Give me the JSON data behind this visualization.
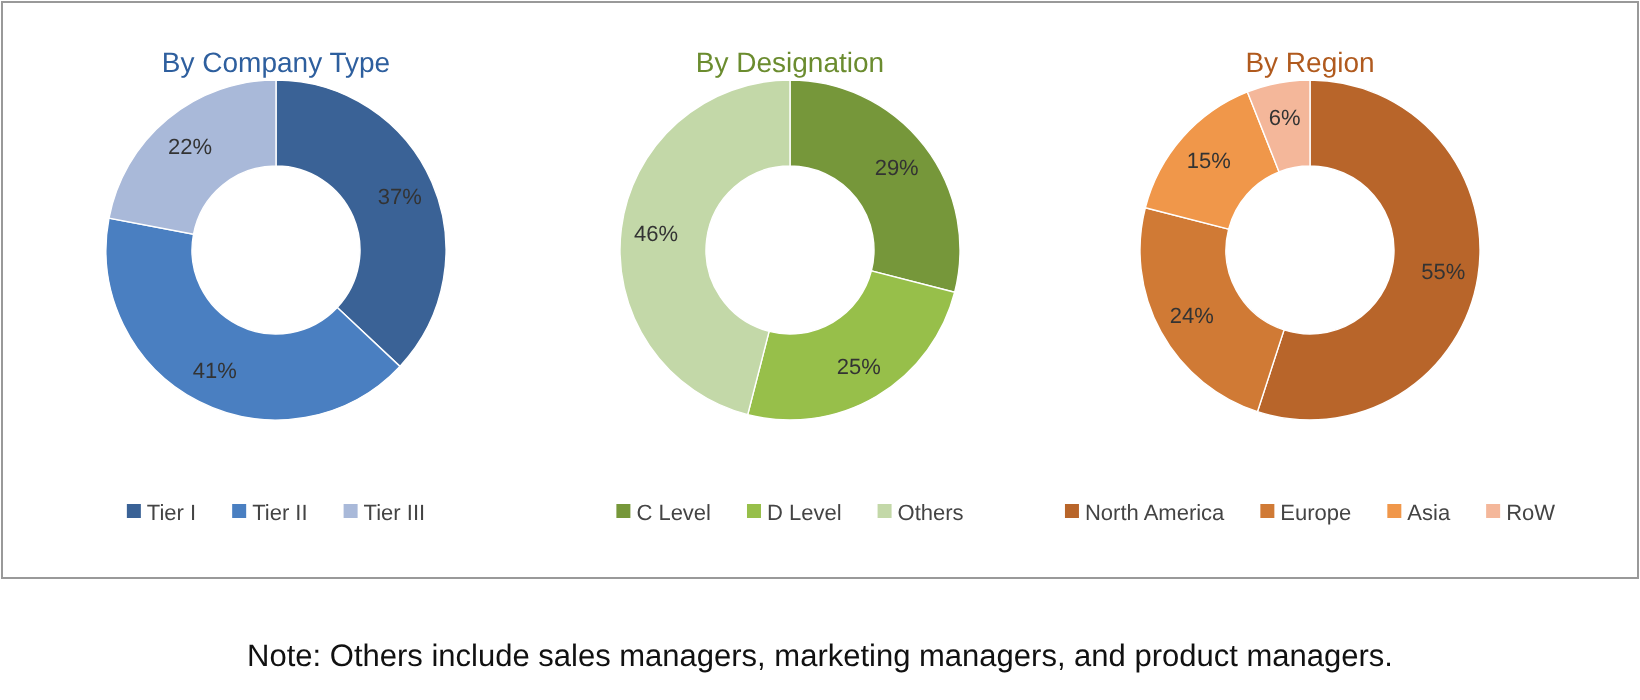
{
  "chart_data": [
    {
      "type": "donut",
      "title": "By Company Type",
      "categories": [
        "Tier I",
        "Tier II",
        "Tier III"
      ],
      "values": [
        37,
        41,
        22
      ],
      "value_labels": [
        "37%",
        "41%",
        "22%"
      ],
      "colors": [
        "#3a6296",
        "#4a7fc1",
        "#a9b9d9"
      ],
      "legend": "bottom"
    },
    {
      "type": "donut",
      "title": "By Designation",
      "categories": [
        "C Level",
        "D Level",
        "Others"
      ],
      "values": [
        29,
        25,
        46
      ],
      "value_labels": [
        "29%",
        "25%",
        "46%"
      ],
      "colors": [
        "#76973a",
        "#97bf4a",
        "#c3d8a8"
      ],
      "legend": "bottom",
      "annotations": [
        "Note: Others include sales managers, marketing managers, and product managers."
      ]
    },
    {
      "type": "donut",
      "title": "By Region",
      "categories": [
        "North America",
        "Europe",
        "Asia",
        "RoW"
      ],
      "values": [
        55,
        24,
        15,
        6
      ],
      "value_labels": [
        "55%",
        "24%",
        "15%",
        "6%"
      ],
      "colors": [
        "#b8652a",
        "#d07a35",
        "#f0974a",
        "#f4b79a"
      ],
      "legend": "bottom"
    }
  ]
}
